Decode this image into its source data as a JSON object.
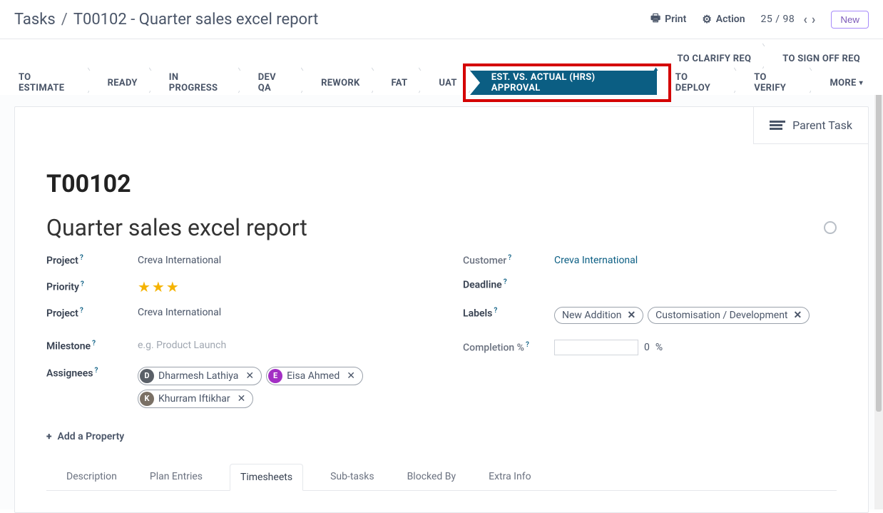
{
  "breadcrumb": {
    "root": "Tasks",
    "separator": "/",
    "current": "T00102 - Quarter sales excel report"
  },
  "topbar": {
    "print_label": "Print",
    "action_label": "Action",
    "pager_current": "25",
    "pager_total": "98",
    "new_label": "New"
  },
  "stages_top": [
    {
      "label": "TO CLARIFY REQ"
    },
    {
      "label": "TO SIGN OFF REQ"
    }
  ],
  "stages_main": [
    {
      "label": "TO ESTIMATE"
    },
    {
      "label": "READY"
    },
    {
      "label": "IN PROGRESS"
    },
    {
      "label": "DEV QA"
    },
    {
      "label": "REWORK"
    },
    {
      "label": "FAT"
    },
    {
      "label": "UAT"
    },
    {
      "label": "EST. VS. ACTUAL (HRS) APPROVAL",
      "active": true,
      "highlighted": true
    },
    {
      "label": "TO DEPLOY"
    },
    {
      "label": "TO VERIFY"
    },
    {
      "label": "MORE",
      "more": true
    }
  ],
  "colors": {
    "active_stage_bg": "#0b5e83",
    "highlight_border": "#d40000",
    "star": "#f5b301",
    "link": "#0b5e83",
    "new_btn_border": "#a78bfa",
    "new_btn_text": "#7c5ab8"
  },
  "smart_button": {
    "parent_task": "Parent Task"
  },
  "task": {
    "id": "T00102",
    "title": "Quarter sales excel report"
  },
  "fields": {
    "project_label": "Project",
    "project_value": "Creva International",
    "priority_label": "Priority",
    "priority_stars": 3,
    "project2_label": "Project",
    "project2_value": "Creva International",
    "milestone_label": "Milestone",
    "milestone_placeholder": "e.g. Product Launch",
    "assignees_label": "Assignees",
    "customer_label": "Customer",
    "customer_value": "Creva International",
    "deadline_label": "Deadline",
    "labels_label": "Labels",
    "completion_label": "Completion %",
    "completion_value": "0",
    "completion_suffix": "%"
  },
  "assignees": [
    {
      "name": "Dharmesh Lathiya",
      "initial": "D",
      "avatar_color": "#5a6068"
    },
    {
      "name": "Eisa Ahmed",
      "initial": "E",
      "avatar_color": "#a32fc4"
    },
    {
      "name": "Khurram Iftikhar",
      "initial": "K",
      "avatar_color": "#7a7065"
    }
  ],
  "labels": [
    {
      "text": "New Addition"
    },
    {
      "text": "Customisation / Development"
    }
  ],
  "add_property_label": "Add a Property",
  "tabs": [
    {
      "label": "Description",
      "active": false
    },
    {
      "label": "Plan Entries",
      "active": false
    },
    {
      "label": "Timesheets",
      "active": true
    },
    {
      "label": "Sub-tasks",
      "active": false
    },
    {
      "label": "Blocked By",
      "active": false
    },
    {
      "label": "Extra Info",
      "active": false
    }
  ]
}
